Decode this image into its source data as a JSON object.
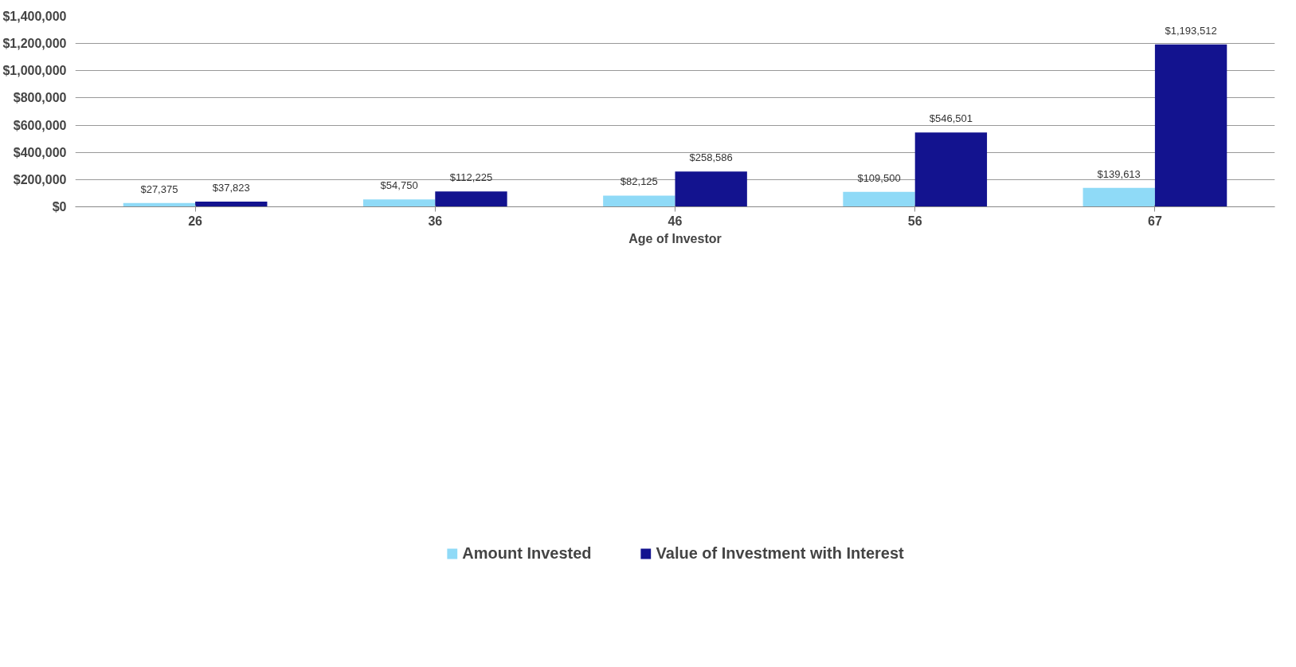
{
  "chart_data": {
    "type": "bar",
    "xlabel": "Age of Investor",
    "categories": [
      "26",
      "36",
      "46",
      "56",
      "67"
    ],
    "series": [
      {
        "name": "Amount Invested",
        "color": "#8fdaf7",
        "values": [
          27375,
          54750,
          82125,
          109500,
          139613
        ],
        "value_labels": [
          "$27,375",
          "$54,750",
          "$82,125",
          "$109,500",
          "$139,613"
        ]
      },
      {
        "name": "Value of Investment with Interest",
        "color": "#13138f",
        "values": [
          37823,
          112225,
          258586,
          546501,
          1193512
        ],
        "value_labels": [
          "$37,823",
          "$112,225",
          "$258,586",
          "$546,501",
          "$1,193,512"
        ]
      }
    ],
    "ylim": [
      0,
      1400000
    ],
    "yticks": [
      {
        "value": 0,
        "label": "$0"
      },
      {
        "value": 200000,
        "label": "$200,000"
      },
      {
        "value": 400000,
        "label": "$400,000"
      },
      {
        "value": 600000,
        "label": "$600,000"
      },
      {
        "value": 800000,
        "label": "$800,000"
      },
      {
        "value": 1000000,
        "label": "$1,000,000"
      },
      {
        "value": 1200000,
        "label": "$1,200,000"
      },
      {
        "value": 1400000,
        "label": "$1,400,000"
      }
    ],
    "grid": "y",
    "legend": "bottom"
  }
}
